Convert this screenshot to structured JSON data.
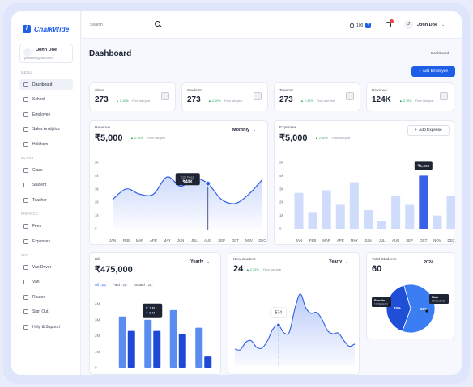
{
  "app": {
    "logo": "ChalkWide"
  },
  "sidebar": {
    "user": {
      "initial": "J",
      "name": "John Doe",
      "email": "johndoe@gmail.com"
    },
    "sections": [
      {
        "label": "MENU",
        "items": [
          {
            "label": "Dashboard",
            "active": true,
            "icon": "grid-icon"
          },
          {
            "label": "School",
            "icon": "school-icon"
          },
          {
            "label": "Employee",
            "icon": "user-icon"
          },
          {
            "label": "Sales Analytics",
            "icon": "chart-icon"
          },
          {
            "label": "Holidays",
            "icon": "calendar-icon"
          }
        ]
      },
      {
        "label": "CLASS",
        "items": [
          {
            "label": "Class",
            "icon": "class-icon"
          },
          {
            "label": "Student",
            "icon": "student-icon"
          },
          {
            "label": "Teacher",
            "icon": "teacher-icon"
          }
        ]
      },
      {
        "label": "FINANCE",
        "items": [
          {
            "label": "Fees",
            "icon": "fees-icon"
          },
          {
            "label": "Expenses",
            "icon": "expenses-icon"
          }
        ]
      },
      {
        "label": "VAN",
        "items": [
          {
            "label": "Van Driver",
            "icon": "driver-icon"
          },
          {
            "label": "Van",
            "icon": "van-icon"
          },
          {
            "label": "Routes",
            "icon": "routes-icon"
          },
          {
            "label": "Sign Out",
            "icon": "sign-out-icon"
          },
          {
            "label": "Help & Support",
            "icon": "help-icon"
          }
        ]
      }
    ]
  },
  "header": {
    "search_placeholder": "Search",
    "coins": "100",
    "user_initial": "J",
    "user_name": "John Doe"
  },
  "page": {
    "title": "Dashboard",
    "breadcrumb": "Dashboard",
    "add_employee": "Add Employee"
  },
  "stats": [
    {
      "label": "Class",
      "value": "273",
      "change": "2.10%",
      "sub": "From last year"
    },
    {
      "label": "Students",
      "value": "273",
      "change": "2.10%",
      "sub": "From last year"
    },
    {
      "label": "Teacher",
      "value": "273",
      "change": "2.10%",
      "sub": "From last year"
    },
    {
      "label": "Revenue",
      "value": "124K",
      "change": "2.10%",
      "sub": "From last year"
    }
  ],
  "revenue": {
    "label": "Revenue",
    "value": "₹5,000",
    "change": "2.10%",
    "sub": "From last year",
    "period": "Monthly",
    "tooltip_label": "12k Fees",
    "tooltip_value": "₹40K",
    "chart_data": {
      "type": "area",
      "categories": [
        "JAN",
        "FEB",
        "MAR",
        "APR",
        "MAY",
        "JUN",
        "JUL",
        "AUG",
        "SEP",
        "OCT",
        "NOV",
        "DEC"
      ],
      "values": [
        2.2,
        3.0,
        2.6,
        2.6,
        3.9,
        3.2,
        3.8,
        3.4,
        2.2,
        1.9,
        2.6,
        3.7
      ],
      "yticks": [
        "5k",
        "4k",
        "3k",
        "2k",
        "1k",
        "0"
      ],
      "ylim": [
        0,
        5
      ],
      "highlight": "AUG"
    }
  },
  "expenses": {
    "label": "Expenses",
    "value": "₹5,000",
    "change": "2.10%",
    "sub": "From last year",
    "add": "Add Expense",
    "tooltip_value": "₹5,000",
    "chart_data": {
      "type": "bar",
      "categories": [
        "JAN",
        "FEB",
        "MAR",
        "APR",
        "MAY",
        "JUN",
        "JUL",
        "AUG",
        "SEP",
        "OCT",
        "NOV",
        "DEC"
      ],
      "values": [
        2.7,
        1.2,
        2.9,
        1.8,
        3.5,
        1.4,
        0.6,
        2.5,
        1.8,
        4.0,
        1.0,
        2.5
      ],
      "yticks": [
        "5k",
        "4k",
        "3k",
        "2k",
        "1k",
        "0"
      ],
      "ylim": [
        0,
        5
      ],
      "highlight": "OCT",
      "colors": {
        "base": "#cfdcfb",
        "highlight": "#3a62e8"
      }
    }
  },
  "bill": {
    "label": "Bill",
    "value": "₹475,000",
    "period": "Yearly",
    "tabs": [
      {
        "label": "All",
        "count": "2k",
        "active": true
      },
      {
        "label": "Paid",
        "count": "2k"
      },
      {
        "label": "Unpaid",
        "count": "2k"
      }
    ],
    "tooltip": [
      "3 M",
      "2 M"
    ],
    "chart_data": {
      "type": "bar",
      "categories": [
        "2019",
        "2020",
        "2021",
        "2022"
      ],
      "series": [
        {
          "values": [
            3.2,
            3.0,
            3.6,
            2.5
          ],
          "color": "#5b8cf0"
        },
        {
          "values": [
            2.3,
            2.3,
            2.1,
            0.7
          ],
          "color": "#1e48d6"
        }
      ],
      "yticks": [
        "4M",
        "3M",
        "2M",
        "1M",
        "0"
      ],
      "ylim": [
        0,
        4
      ]
    }
  },
  "new_student": {
    "label": "New Student",
    "value": "24",
    "change": "2.10%",
    "sub": "From last year",
    "period": "Yearly",
    "tooltip_value": "574",
    "chart_data": {
      "type": "area",
      "categories": [
        "JAN",
        "FEB",
        "MAR",
        "APR",
        "MAY",
        "JUN",
        "JUL",
        "AUG",
        "SEP",
        "OCT",
        "NOV",
        "DEC"
      ],
      "values": [
        20,
        28,
        22,
        30,
        48,
        40,
        85,
        62,
        55,
        38,
        30,
        26
      ],
      "ylim": [
        0,
        100
      ]
    }
  },
  "total_students": {
    "label": "Total Students",
    "value": "60",
    "period": "2024",
    "chart_data": {
      "type": "pie",
      "slices": [
        {
          "name": "Female",
          "sub": "12 Students",
          "value": 40,
          "label": "40%",
          "color": "#1f4fd6"
        },
        {
          "name": "Male",
          "sub": "12 Students",
          "value": 60,
          "label": "60%",
          "color": "#3b7df2"
        }
      ]
    }
  }
}
